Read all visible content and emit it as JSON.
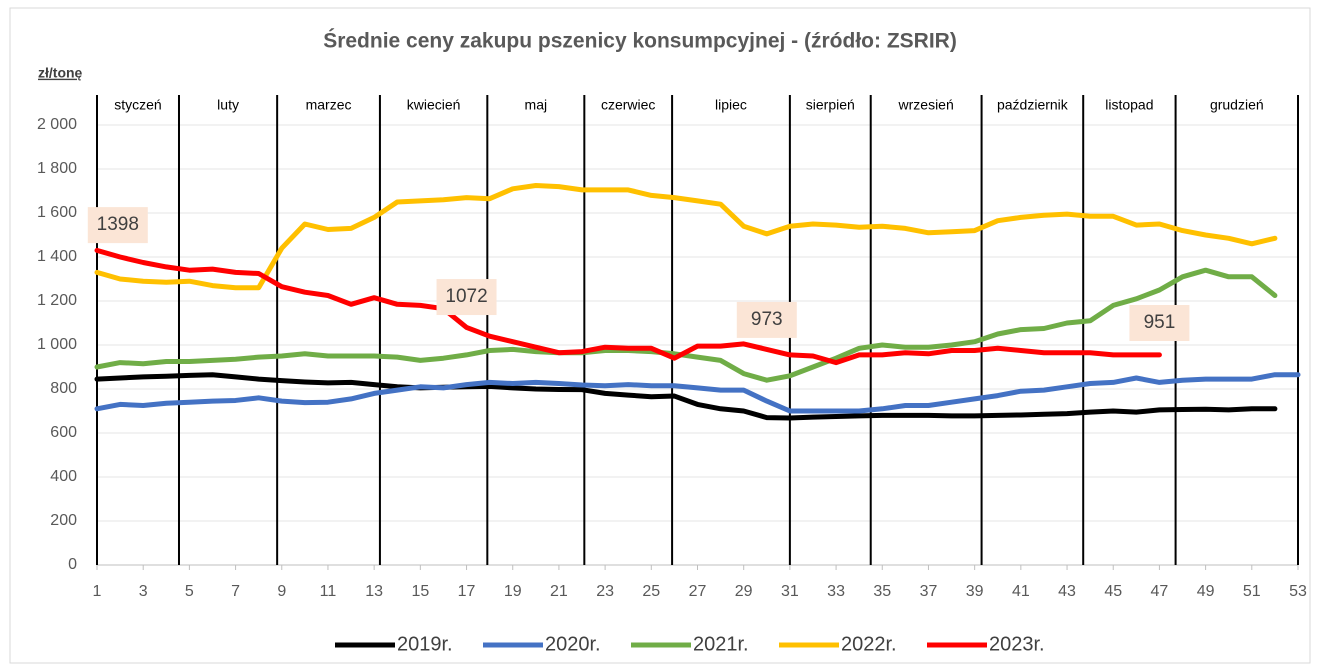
{
  "chart_data": {
    "type": "line",
    "title": "Średnie ceny zakupu pszenicy konsumpcyjnej - (źródło: ZSRIR)",
    "y_label": "zł/tonę",
    "x": [
      1,
      2,
      3,
      4,
      5,
      6,
      7,
      8,
      9,
      10,
      11,
      12,
      13,
      14,
      15,
      16,
      17,
      18,
      19,
      20,
      21,
      22,
      23,
      24,
      25,
      26,
      27,
      28,
      29,
      30,
      31,
      32,
      33,
      34,
      35,
      36,
      37,
      38,
      39,
      40,
      41,
      42,
      43,
      44,
      45,
      46,
      47,
      48,
      49,
      50,
      51,
      52,
      53
    ],
    "xlim": [
      1,
      53
    ],
    "xticks": [
      1,
      3,
      5,
      7,
      9,
      11,
      13,
      15,
      17,
      19,
      21,
      23,
      25,
      27,
      29,
      31,
      33,
      35,
      37,
      39,
      41,
      43,
      45,
      47,
      49,
      51,
      53
    ],
    "ylim": [
      0,
      2000
    ],
    "yticks": [
      0,
      200,
      400,
      600,
      800,
      {
        "value": 1000,
        "label": "1 000"
      },
      {
        "value": 1200,
        "label": "1 200"
      },
      {
        "value": 1400,
        "label": "1 400"
      },
      {
        "value": 1600,
        "label": "1 600"
      },
      {
        "value": 1800,
        "label": "1 800"
      },
      {
        "value": 2000,
        "label": "2 000"
      }
    ],
    "grid": true,
    "month_labels": [
      "styczeń",
      "luty",
      "marzec",
      "kwiecień",
      "maj",
      "czerwiec",
      "lipiec",
      "sierpień",
      "wrzesień",
      "październik",
      "listopad",
      "grudzień"
    ],
    "month_edges": [
      1,
      4.55,
      8.8,
      13.25,
      17.9,
      22.1,
      25.9,
      31,
      34.5,
      39.3,
      43.7,
      47.7,
      53
    ],
    "annotations": [
      {
        "text": 1398,
        "x": 1.9,
        "y": 1545
      },
      {
        "text": 1072,
        "x": 17,
        "y": 1218
      },
      {
        "text": 973,
        "x": 30,
        "y": 1114
      },
      {
        "text": 951,
        "x": 47,
        "y": 1100
      }
    ],
    "series": [
      {
        "name": "2019r.",
        "color": "#000000",
        "values": [
          845,
          850,
          855,
          858,
          862,
          865,
          855,
          845,
          838,
          832,
          828,
          830,
          820,
          810,
          805,
          808,
          810,
          812,
          805,
          800,
          798,
          797,
          780,
          772,
          765,
          768,
          730,
          710,
          700,
          670,
          668,
          672,
          675,
          678,
          680,
          680,
          680,
          678,
          678,
          680,
          682,
          685,
          688,
          695,
          700,
          695,
          705,
          707,
          708,
          705,
          710,
          710,
          null
        ]
      },
      {
        "name": "2020r.",
        "color": "#4472c4",
        "values": [
          710,
          730,
          725,
          735,
          740,
          745,
          748,
          760,
          745,
          738,
          740,
          755,
          780,
          795,
          810,
          805,
          820,
          830,
          825,
          830,
          825,
          818,
          815,
          820,
          815,
          815,
          805,
          795,
          795,
          745,
          700,
          700,
          700,
          700,
          710,
          725,
          725,
          740,
          755,
          770,
          790,
          795,
          810,
          825,
          830,
          850,
          830,
          840,
          845,
          845,
          845,
          865,
          865
        ]
      },
      {
        "name": "2021r.",
        "color": "#70ad47",
        "values": [
          900,
          920,
          915,
          925,
          925,
          930,
          935,
          945,
          950,
          960,
          950,
          950,
          950,
          945,
          930,
          940,
          955,
          975,
          980,
          970,
          965,
          965,
          975,
          975,
          970,
          960,
          945,
          930,
          870,
          840,
          860,
          900,
          940,
          985,
          1000,
          990,
          990,
          1000,
          1015,
          1050,
          1070,
          1075,
          1100,
          1110,
          1180,
          1210,
          1250,
          1310,
          1340,
          1310,
          1310,
          1225,
          null
        ]
      },
      {
        "name": "2022r.",
        "color": "#ffc000",
        "values": [
          1330,
          1300,
          1290,
          1285,
          1290,
          1270,
          1260,
          1260,
          1440,
          1550,
          1525,
          1530,
          1580,
          1650,
          1655,
          1660,
          1670,
          1665,
          1710,
          1725,
          1720,
          1705,
          1705,
          1705,
          1680,
          1670,
          1655,
          1640,
          1540,
          1505,
          1540,
          1550,
          1545,
          1535,
          1540,
          1530,
          1510,
          1515,
          1520,
          1565,
          1580,
          1590,
          1595,
          1585,
          1585,
          1545,
          1550,
          1520,
          1500,
          1485,
          1460,
          1485,
          null
        ]
      },
      {
        "name": "2023r.",
        "color": "#ff0000",
        "values": [
          1430,
          1400,
          1375,
          1355,
          1340,
          1345,
          1330,
          1325,
          1265,
          1240,
          1225,
          1185,
          1215,
          1185,
          1180,
          1165,
          1080,
          1040,
          1015,
          990,
          965,
          970,
          990,
          985,
          985,
          940,
          995,
          995,
          1005,
          980,
          955,
          950,
          920,
          955,
          955,
          965,
          960,
          975,
          975,
          985,
          975,
          965,
          965,
          965,
          955,
          955,
          955,
          null,
          null,
          null,
          null,
          null,
          null
        ]
      }
    ]
  }
}
